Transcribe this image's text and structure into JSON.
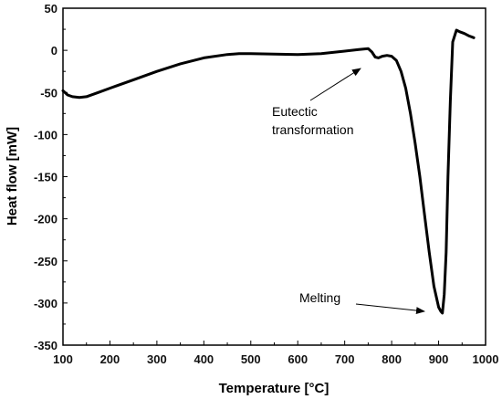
{
  "chart_data": {
    "type": "line",
    "title": "",
    "xlabel": "Temperature [°C]",
    "ylabel": "Heat flow [mW]",
    "xlim": [
      100,
      1000
    ],
    "ylim": [
      -350,
      50
    ],
    "xticks": [
      100,
      200,
      300,
      400,
      500,
      600,
      700,
      800,
      900,
      1000
    ],
    "yticks": [
      50,
      0,
      -50,
      -100,
      -150,
      -200,
      -250,
      -300,
      -350
    ],
    "grid": false,
    "legend": "none",
    "line_color": "#000000",
    "series": [
      {
        "x": [
          100,
          110,
          120,
          135,
          150,
          175,
          200,
          250,
          300,
          350,
          400,
          450,
          475,
          500,
          550,
          600,
          650,
          700,
          730,
          750,
          758,
          765,
          772,
          780,
          790,
          800,
          810,
          820,
          830,
          840,
          850,
          860,
          870,
          880,
          890,
          900,
          905,
          908,
          912,
          916,
          920,
          925,
          930,
          938,
          945,
          955,
          965,
          975
        ],
        "y": [
          -48,
          -53,
          -55,
          -56,
          -55,
          -50,
          -45,
          -35,
          -25,
          -16,
          -9,
          -5,
          -4,
          -4,
          -4.5,
          -5,
          -4,
          -1,
          1,
          2,
          -2,
          -8,
          -9,
          -7,
          -6,
          -7,
          -12,
          -25,
          -45,
          -75,
          -110,
          -150,
          -195,
          -240,
          -280,
          -305,
          -310,
          -312,
          -290,
          -240,
          -150,
          -60,
          10,
          24,
          22,
          20,
          17,
          15
        ]
      }
    ],
    "annotations": [
      {
        "label_line1": "Eutectic",
        "label_line2": "transformation",
        "arrow_to": [
          758,
          -3
        ]
      },
      {
        "label": "Melting",
        "arrow_to": [
          905,
          -310
        ]
      }
    ]
  }
}
